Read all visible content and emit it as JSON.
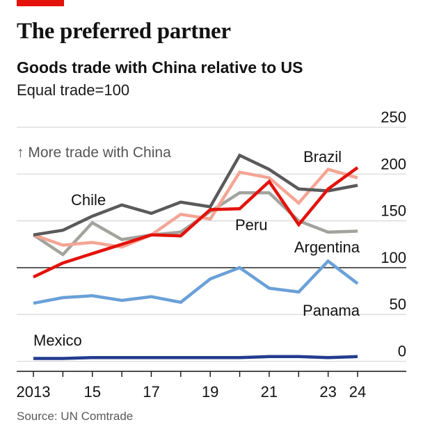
{
  "title": "The preferred partner",
  "subtitle": "Goods trade with China relative to US",
  "unit_note": "Equal trade=100",
  "source": "Source: UN Comtrade",
  "colors": {
    "accent": "#e3120b",
    "brazil": "#e3120b",
    "chile": "#5a5a5c",
    "peru": "#f4a594",
    "argentina": "#a3a39e",
    "panama": "#6aa0d8",
    "mexico": "#233c8f",
    "gridline": "#d6d6d6",
    "baseline": "#121212"
  },
  "chart_data": {
    "type": "line",
    "annotation": "↑ More trade with China",
    "x": [
      2013,
      2014,
      2015,
      2016,
      2017,
      2018,
      2019,
      2020,
      2021,
      2022,
      2023,
      2024
    ],
    "x_tick_values": [
      2013,
      2015,
      2017,
      2019,
      2021,
      2023,
      2024
    ],
    "x_tick_labels": [
      "2013",
      "15",
      "17",
      "19",
      "21",
      "23",
      "24"
    ],
    "y_ticks": [
      0,
      50,
      100,
      150,
      200,
      250
    ],
    "ylim": [
      -10,
      250
    ],
    "xlim": [
      2013,
      2024
    ],
    "reference_line": 100,
    "grid": true,
    "series": [
      {
        "name": "Mexico",
        "color_key": "mexico",
        "values": [
          3,
          3,
          4,
          4,
          4,
          4,
          4,
          4,
          5,
          5,
          4,
          5
        ]
      },
      {
        "name": "Panama",
        "color_key": "panama",
        "values": [
          62,
          68,
          70,
          65,
          69,
          63,
          88,
          100,
          78,
          74,
          107,
          83
        ]
      },
      {
        "name": "Argentina",
        "color_key": "argentina",
        "values": [
          135,
          114,
          148,
          130,
          135,
          138,
          160,
          180,
          180,
          150,
          138,
          139
        ]
      },
      {
        "name": "Peru",
        "color_key": "peru",
        "values": [
          135,
          124,
          127,
          122,
          135,
          157,
          152,
          202,
          196,
          169,
          205,
          196
        ]
      },
      {
        "name": "Chile",
        "color_key": "chile",
        "values": [
          135,
          140,
          155,
          167,
          158,
          170,
          165,
          220,
          205,
          184,
          182,
          188
        ]
      },
      {
        "name": "Brazil",
        "color_key": "brazil",
        "values": [
          90,
          105,
          115,
          125,
          135,
          134,
          162,
          163,
          192,
          146,
          184,
          207
        ]
      }
    ]
  }
}
